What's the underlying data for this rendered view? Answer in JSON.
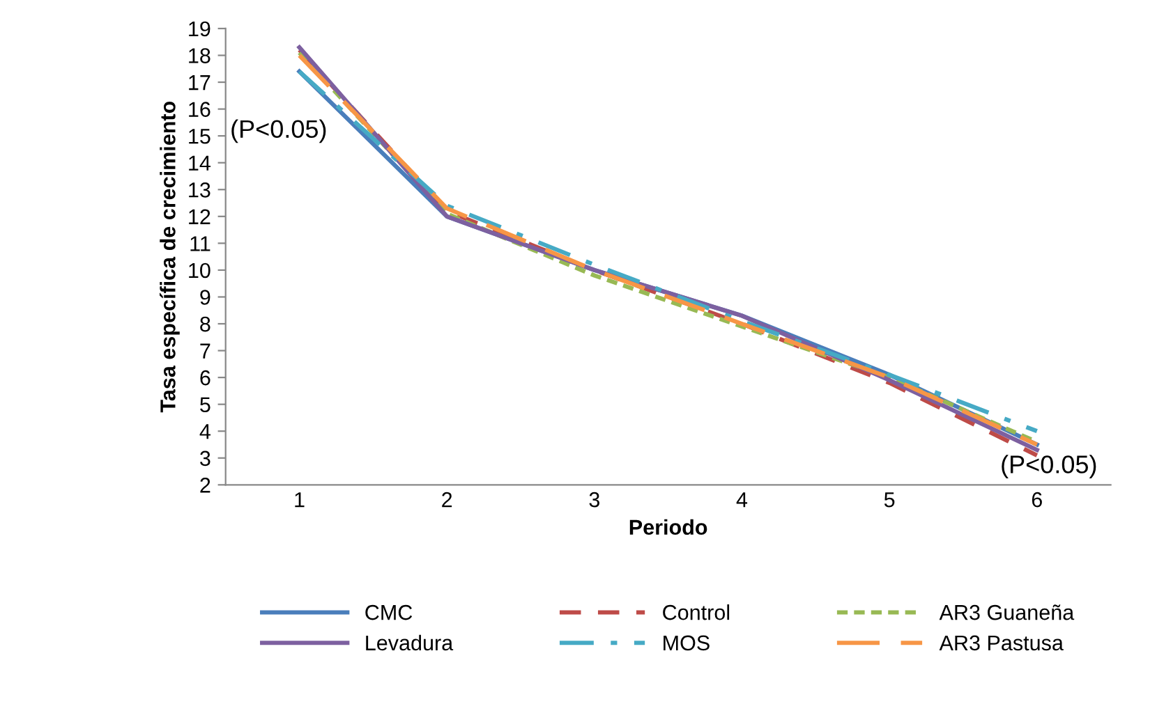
{
  "chart_data": {
    "type": "line",
    "xlabel": "Periodo",
    "ylabel": "Tasa específica de crecimiento",
    "categories": [
      "1",
      "2",
      "3",
      "4",
      "5",
      "6"
    ],
    "series": [
      {
        "name": "CMC",
        "color": "#4a7ebb",
        "line_style": "solid",
        "values": [
          17.4,
          12.0,
          10.0,
          8.3,
          6.1,
          3.5
        ]
      },
      {
        "name": "Control",
        "color": "#be4b48",
        "line_style": "dashed",
        "values": [
          18.2,
          12.2,
          10.0,
          8.0,
          5.8,
          3.1
        ]
      },
      {
        "name": "AR3 Guaneña",
        "color": "#98b954",
        "line_style": "dotted",
        "values": [
          18.1,
          12.1,
          9.8,
          7.9,
          6.0,
          3.6
        ]
      },
      {
        "name": "Levadura",
        "color": "#7d60a0",
        "line_style": "solid",
        "values": [
          18.3,
          12.0,
          10.0,
          8.3,
          5.9,
          3.3
        ]
      },
      {
        "name": "MOS",
        "color": "#46aac5",
        "line_style": "dashdot",
        "values": [
          17.4,
          12.4,
          10.2,
          8.1,
          6.1,
          4.0
        ]
      },
      {
        "name": "AR3 Pastusa",
        "color": "#f79646",
        "line_style": "longdash",
        "values": [
          18.0,
          12.3,
          10.0,
          8.0,
          6.0,
          3.5
        ]
      }
    ],
    "ylim": [
      2,
      19
    ],
    "yticks": [
      2,
      3,
      4,
      5,
      6,
      7,
      8,
      9,
      10,
      11,
      12,
      13,
      14,
      15,
      16,
      17,
      18,
      19
    ],
    "grid": false,
    "legend": "bottom",
    "marker": "none",
    "annotations": [
      "(P<0.05)",
      "(P<0.05)"
    ]
  }
}
